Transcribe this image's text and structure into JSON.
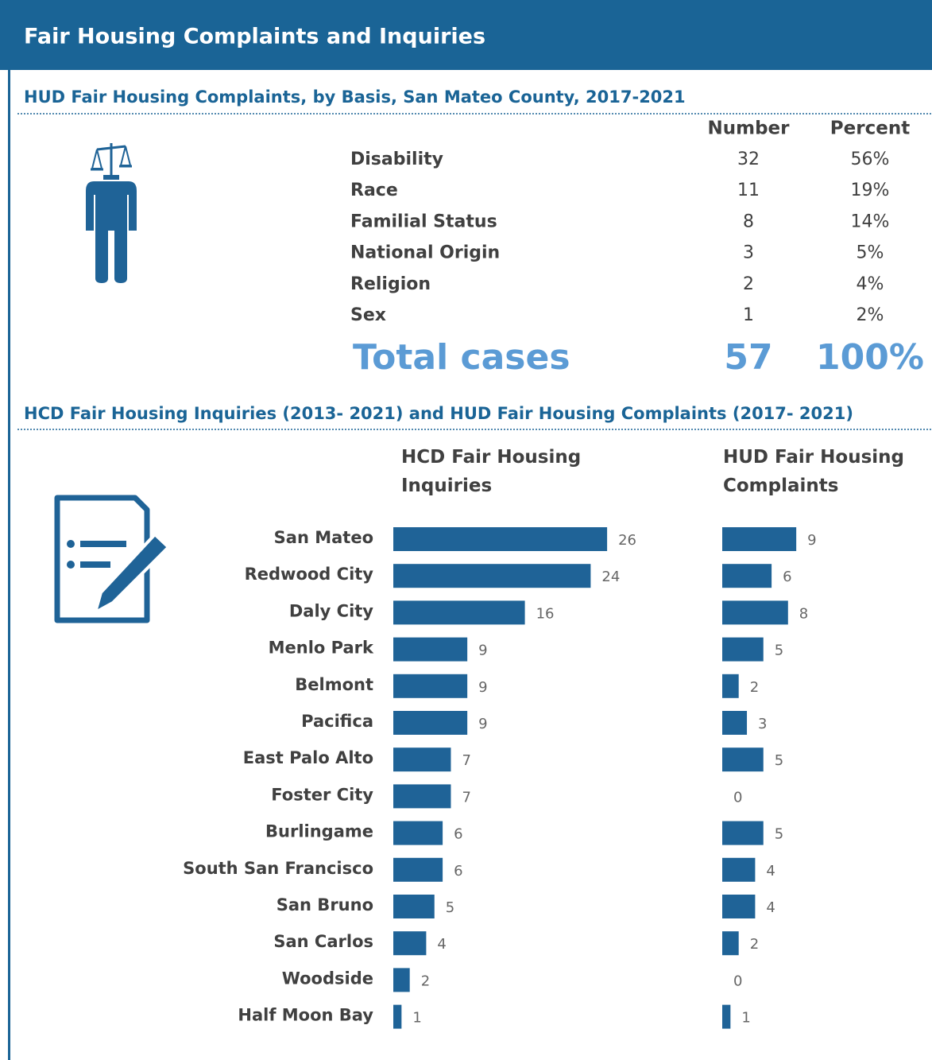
{
  "header": {
    "title": "Fair Housing Complaints and Inquiries"
  },
  "table": {
    "title": "HUD Fair Housing Complaints, by Basis, San Mateo County, 2017-2021",
    "columns": [
      "Number",
      "Percent"
    ],
    "rows": [
      [
        "Disability",
        32,
        "56%"
      ],
      [
        "Race",
        11,
        "19%"
      ],
      [
        "Familial Status",
        8,
        "14%"
      ],
      [
        "National Origin",
        3,
        "5%"
      ],
      [
        "Religion",
        2,
        "4%"
      ],
      [
        "Sex",
        1,
        "2%"
      ]
    ],
    "total": [
      "Total cases",
      57,
      "100%"
    ]
  },
  "chart_data": {
    "type": "bar",
    "title": "HCD Fair Housing Inquiries (2013- 2021) and HUD Fair Housing Complaints (2017- 2021)",
    "categories": [
      "San Mateo",
      "Redwood City",
      "Daly City",
      "Menlo Park",
      "Belmont",
      "Pacifica",
      "East Palo Alto",
      "Foster City",
      "Burlingame",
      "South San Francisco",
      "San Bruno",
      "San Carlos",
      "Woodside",
      "Half Moon Bay"
    ],
    "series": [
      {
        "name": "HCD Fair Housing Inquiries",
        "color": "#1f6397",
        "values": [
          26,
          24,
          16,
          9,
          9,
          9,
          7,
          7,
          6,
          6,
          5,
          4,
          2,
          1
        ]
      },
      {
        "name": "HUD Fair Housing Complaints",
        "color": "#1f6397",
        "values": [
          9,
          6,
          8,
          5,
          2,
          3,
          5,
          0,
          5,
          4,
          4,
          2,
          0,
          1
        ]
      }
    ]
  }
}
